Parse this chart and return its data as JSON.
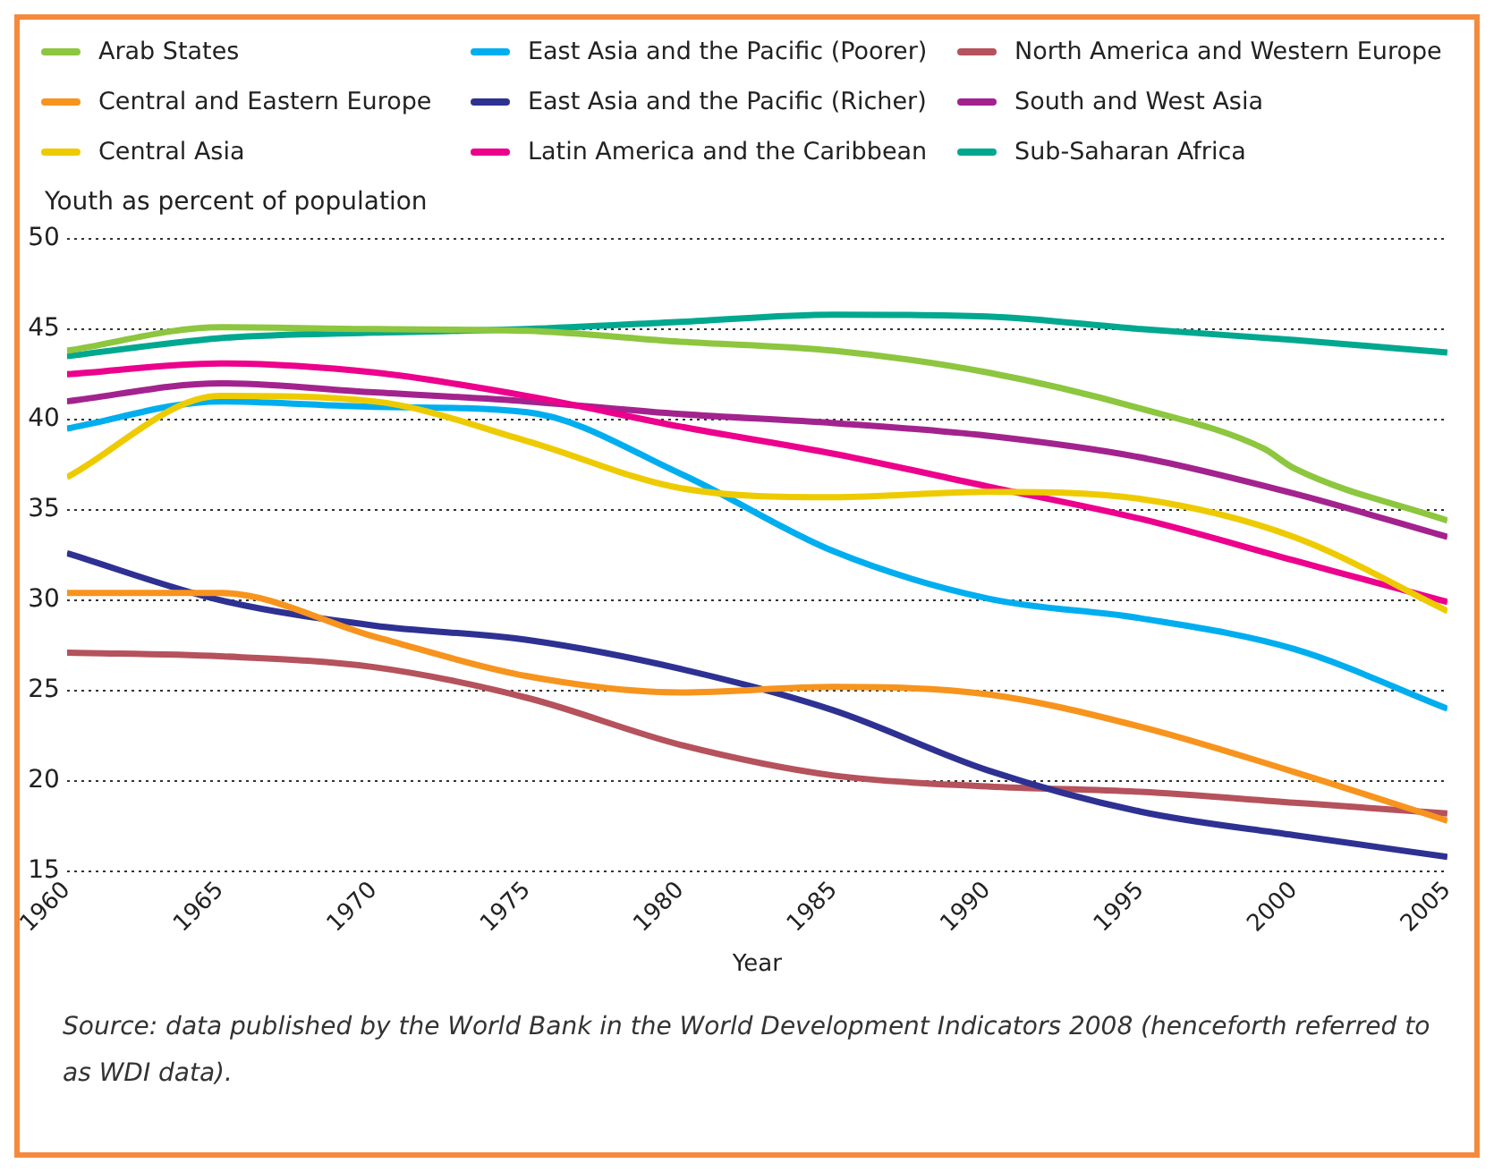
{
  "chart_data": {
    "type": "line",
    "ylabel": "Youth as percent of population",
    "xlabel": "Year",
    "x": [
      1960,
      1965,
      1970,
      1975,
      1980,
      1985,
      1990,
      1995,
      2000,
      2005
    ],
    "xlim": [
      1960,
      2005
    ],
    "xticks": [
      1960,
      1965,
      1970,
      1975,
      1980,
      1985,
      1990,
      1995,
      2000,
      2005
    ],
    "ylim": [
      15,
      50
    ],
    "yticks": [
      15,
      20,
      25,
      30,
      35,
      40,
      45,
      50
    ],
    "grid": "y",
    "legend": "top",
    "marker": "none",
    "line_style": "solid",
    "series": [
      {
        "name": "Arab States",
        "color": "#8dc63f",
        "x": [
          1960,
          1965,
          1970,
          1975,
          1980,
          1985,
          1990,
          1995,
          1999,
          2000,
          2005
        ],
        "values": [
          43.8,
          45.1,
          45.0,
          44.9,
          44.3,
          43.8,
          42.6,
          40.6,
          38.4,
          37.3,
          34.4
        ]
      },
      {
        "name": "Central and Eastern Europe",
        "color": "#f7941d",
        "values": [
          30.4,
          30.4,
          28.0,
          25.8,
          24.9,
          25.2,
          24.8,
          23.0,
          20.5,
          17.8
        ]
      },
      {
        "name": "Central Asia",
        "color": "#eecb00",
        "values": [
          36.8,
          41.3,
          41.0,
          38.8,
          36.2,
          35.7,
          36.0,
          35.6,
          33.5,
          29.4
        ]
      },
      {
        "name": "East Asia and the Pacific (Poorer)",
        "color": "#00aeef",
        "values": [
          39.5,
          41.0,
          40.7,
          40.4,
          37.0,
          32.7,
          30.1,
          29.0,
          27.3,
          24.0
        ]
      },
      {
        "name": "East Asia and the Pacific (Richer)",
        "color": "#2e3192",
        "values": [
          32.6,
          30.0,
          28.6,
          27.8,
          26.2,
          23.9,
          20.6,
          18.3,
          17.0,
          15.8
        ]
      },
      {
        "name": "Latin America and the Caribbean",
        "color": "#ec008c",
        "values": [
          42.5,
          43.1,
          42.6,
          41.3,
          39.6,
          38.1,
          36.3,
          34.5,
          32.2,
          29.9
        ]
      },
      {
        "name": "North America and Western Europe",
        "color": "#b5525c",
        "values": [
          27.1,
          26.9,
          26.3,
          24.6,
          22.0,
          20.3,
          19.7,
          19.4,
          18.8,
          18.2
        ]
      },
      {
        "name": "South and West Asia",
        "color": "#a3238e",
        "values": [
          41.0,
          42.0,
          41.5,
          41.0,
          40.3,
          39.8,
          39.1,
          37.9,
          35.9,
          33.5
        ]
      },
      {
        "name": "Sub-Saharan Africa",
        "color": "#00a88f",
        "values": [
          43.5,
          44.5,
          44.8,
          45.0,
          45.4,
          45.8,
          45.7,
          45.0,
          44.4,
          43.7
        ]
      }
    ],
    "annotations": [
      "Source: data published by the World Bank in the World Development Indicators 2008 (henceforth referred to as WDI data)."
    ]
  }
}
